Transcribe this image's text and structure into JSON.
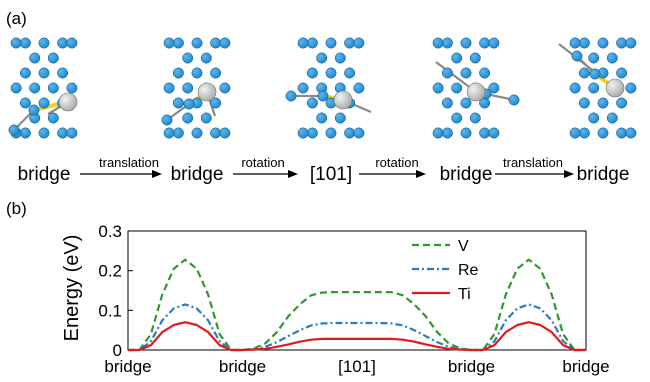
{
  "panel_a": {
    "label": "(a)",
    "sites": [
      "bridge",
      "bridge",
      "[101]",
      "bridge",
      "bridge"
    ],
    "transitions": [
      "translation",
      "rotation",
      "rotation",
      "translation"
    ],
    "colors": {
      "atom": "#1f86c8",
      "atom_edge": "#0b4f7e",
      "solute": "#a9a9a9",
      "bond_highlight": "#f2d21b",
      "bond": "#8a8a8a"
    }
  },
  "panel_b": {
    "label": "(b)"
  },
  "chart_data": {
    "type": "line",
    "title": "",
    "xlabel": "",
    "ylabel": "Energy (eV)",
    "ylim": [
      0,
      0.3
    ],
    "yticks": [
      0,
      0.1,
      0.2,
      0.3
    ],
    "ytick_labels": [
      "0",
      "0.1",
      "0.2",
      "0.3"
    ],
    "xlim": [
      0,
      4
    ],
    "xtick_labels": [
      "bridge",
      "bridge",
      "[101]",
      "bridge",
      "bridge"
    ],
    "xticks": [
      0,
      1,
      2,
      3,
      4
    ],
    "grid": false,
    "legend": "top-right",
    "x": [
      0,
      0.1,
      0.2,
      0.3,
      0.4,
      0.5,
      0.6,
      0.7,
      0.8,
      0.9,
      1.0,
      1.1,
      1.2,
      1.3,
      1.4,
      1.5,
      1.6,
      1.7,
      1.8,
      1.9,
      2.0,
      2.1,
      2.2,
      2.3,
      2.4,
      2.5,
      2.6,
      2.7,
      2.8,
      2.9,
      3.0,
      3.1,
      3.2,
      3.3,
      3.4,
      3.5,
      3.6,
      3.7,
      3.8,
      3.9,
      4.0
    ],
    "series": [
      {
        "name": "V",
        "color": "#2e9a2e",
        "dash": "dashed",
        "values": [
          0,
          0,
          0.04,
          0.14,
          0.205,
          0.228,
          0.205,
          0.14,
          0.04,
          0,
          0,
          0.004,
          0.017,
          0.045,
          0.085,
          0.115,
          0.138,
          0.145,
          0.146,
          0.146,
          0.146,
          0.146,
          0.146,
          0.146,
          0.138,
          0.115,
          0.085,
          0.045,
          0.017,
          0.004,
          0,
          0,
          0.04,
          0.14,
          0.205,
          0.228,
          0.205,
          0.14,
          0.04,
          0,
          0
        ]
      },
      {
        "name": "Re",
        "color": "#2b7bc0",
        "dash": "dashdot",
        "values": [
          0,
          0,
          0.022,
          0.075,
          0.105,
          0.115,
          0.105,
          0.075,
          0.022,
          0,
          0,
          0.002,
          0.008,
          0.02,
          0.035,
          0.05,
          0.062,
          0.067,
          0.068,
          0.068,
          0.068,
          0.068,
          0.068,
          0.067,
          0.062,
          0.05,
          0.035,
          0.02,
          0.008,
          0.002,
          0,
          0,
          0.022,
          0.075,
          0.105,
          0.115,
          0.105,
          0.075,
          0.022,
          0,
          0
        ]
      },
      {
        "name": "Ti",
        "color": "#e4191b",
        "dash": "solid",
        "values": [
          0,
          0,
          0.012,
          0.045,
          0.063,
          0.07,
          0.063,
          0.045,
          0.012,
          0,
          0,
          0.001,
          0.003,
          0.008,
          0.014,
          0.021,
          0.026,
          0.028,
          0.028,
          0.028,
          0.028,
          0.028,
          0.028,
          0.028,
          0.026,
          0.021,
          0.014,
          0.008,
          0.003,
          0.001,
          0,
          0,
          0.012,
          0.045,
          0.063,
          0.07,
          0.063,
          0.045,
          0.012,
          0,
          0
        ]
      }
    ]
  }
}
